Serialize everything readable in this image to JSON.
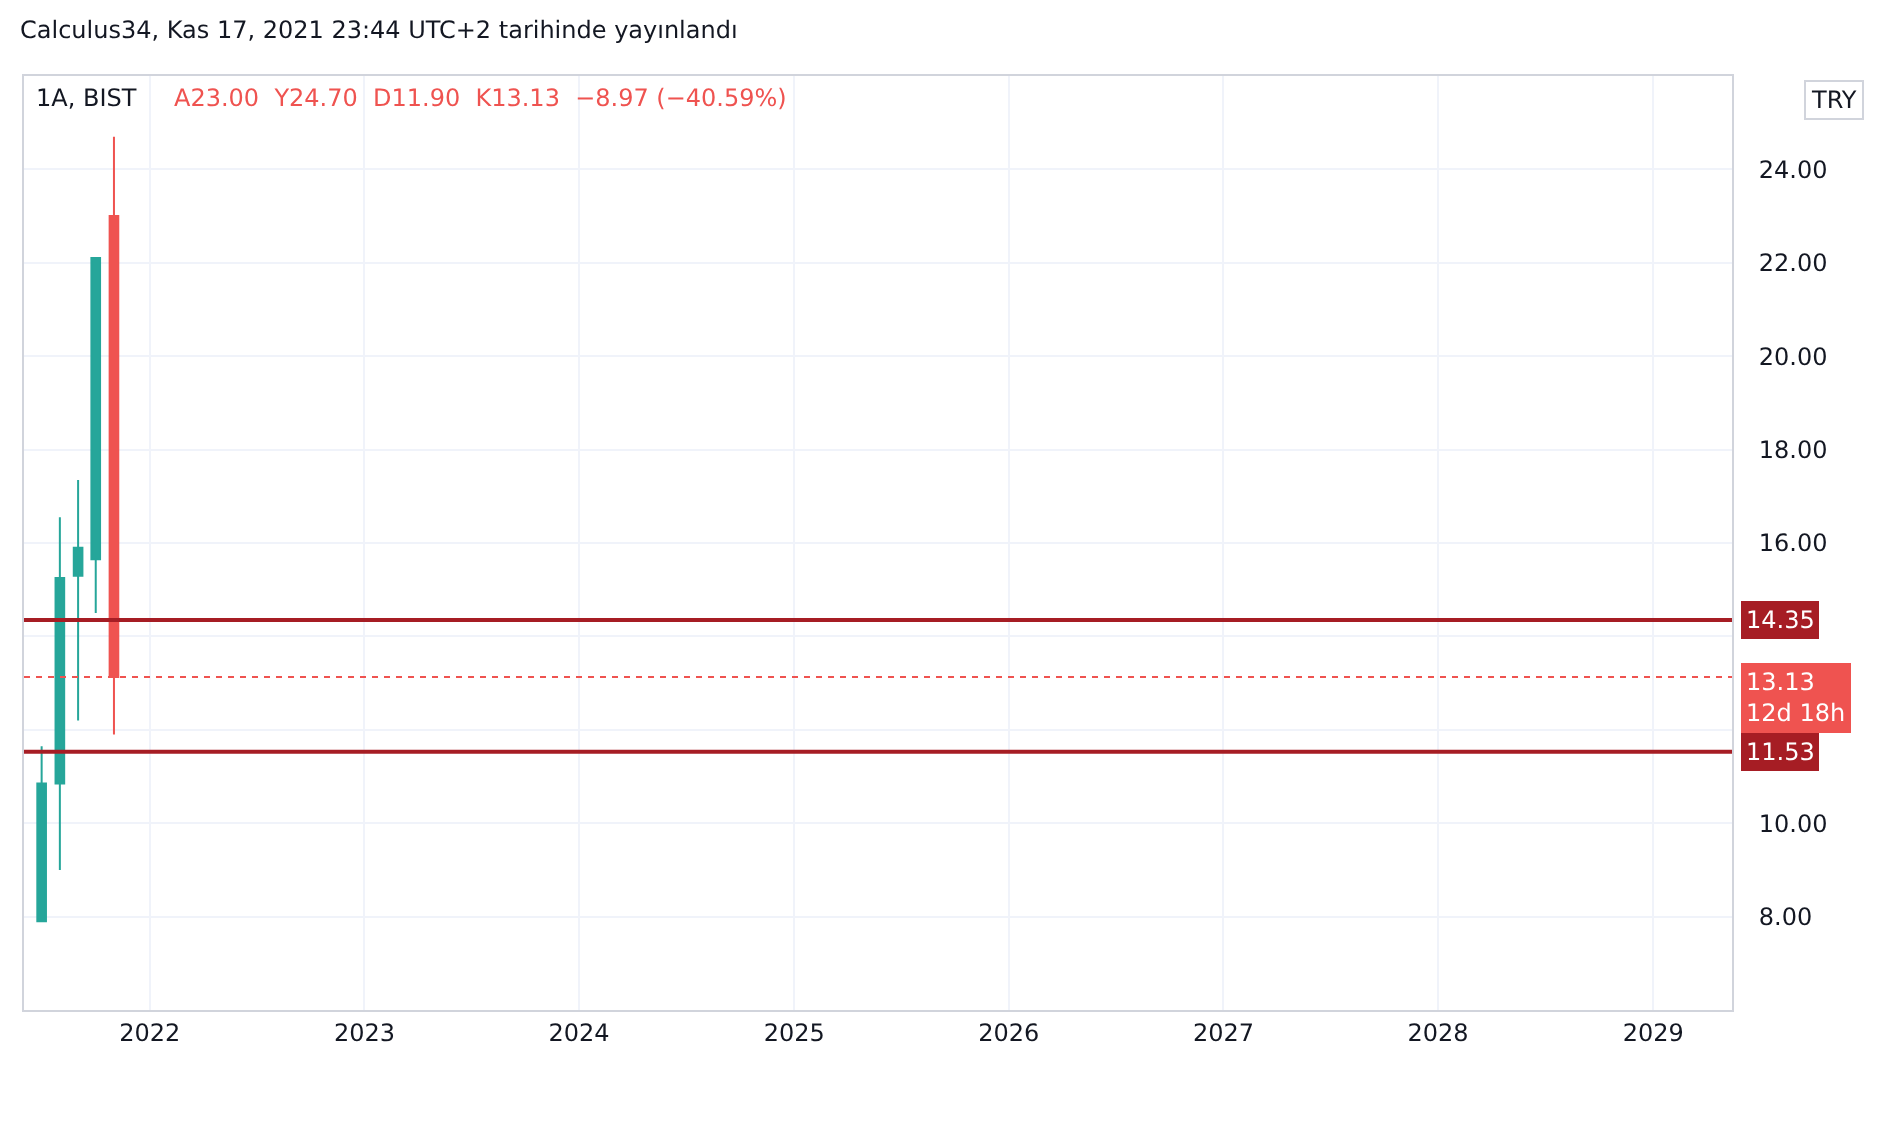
{
  "chart_data": {
    "type": "candlestick",
    "title": "1A, BIST",
    "subtitle": "Calculus34, Kas 17, 2021 23:44 UTC+2 tarihinde yayınlandı",
    "annotations": [
      "A23.00  Y24.70  D11.90  K13.13  −8.97 (−40.59%)",
      "TRY"
    ],
    "x": [
      "2021-07",
      "2021-08",
      "2021-09",
      "2021-10",
      "2021-11"
    ],
    "ohlc": [
      [
        7.9,
        11.65,
        7.9,
        10.85
      ],
      [
        10.85,
        16.55,
        9.0,
        15.25
      ],
      [
        15.3,
        17.35,
        12.2,
        15.9
      ],
      [
        15.65,
        22.1,
        14.5,
        22.1
      ],
      [
        23.0,
        24.7,
        11.9,
        13.13
      ]
    ],
    "colors": [
      "#26a69a",
      "#26a69a",
      "#26a69a",
      "#26a69a",
      "#ef5350"
    ],
    "xlim": [
      "2021-06-01",
      "2029-05-15"
    ],
    "xticks": [
      {
        "value": "2022-01-01",
        "label": "2022"
      },
      {
        "value": "2023-01-01",
        "label": "2023"
      },
      {
        "value": "2024-01-01",
        "label": "2024"
      },
      {
        "value": "2025-01-01",
        "label": "2025"
      },
      {
        "value": "2026-01-01",
        "label": "2026"
      },
      {
        "value": "2027-01-01",
        "label": "2027"
      },
      {
        "value": "2028-01-01",
        "label": "2028"
      },
      {
        "value": "2029-01-01",
        "label": "2029"
      }
    ],
    "ylim": [
      6,
      26
    ],
    "yticks": [
      {
        "value": 8,
        "label": "8.00"
      },
      {
        "value": 10,
        "label": "10.00"
      },
      {
        "value": 12,
        "label": null
      },
      {
        "value": 14,
        "label": null
      },
      {
        "value": 16,
        "label": "16.00"
      },
      {
        "value": 18,
        "label": "18.00"
      },
      {
        "value": 20,
        "label": "20.00"
      },
      {
        "value": 22,
        "label": "22.00"
      },
      {
        "value": 24,
        "label": "24.00"
      }
    ],
    "ref_lines": [
      {
        "axis": "y",
        "value": 14.35,
        "label": "14.35",
        "color": "#a61d24",
        "line_style": "solid"
      },
      {
        "axis": "y",
        "value": 11.53,
        "label": "11.53",
        "color": "#a61d24",
        "line_style": "solid"
      },
      {
        "axis": "y",
        "value": 13.13,
        "label": "13.13\n12d 18h",
        "color": "#ef5350",
        "line_style": "dotted"
      }
    ],
    "grid": true,
    "legend": false
  }
}
